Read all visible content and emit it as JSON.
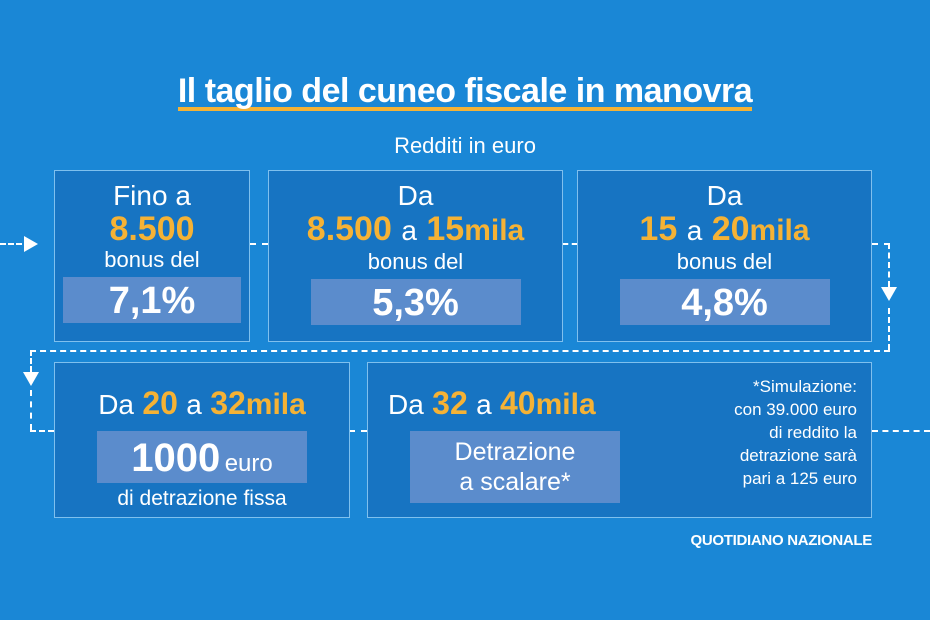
{
  "title": "Il taglio del cuneo fiscale in manovra",
  "subtitle": "Redditi in euro",
  "boxes": [
    {
      "line1": "Fino a",
      "amount": "8.500",
      "bonus_label": "bonus del",
      "percent": "7,1%"
    },
    {
      "line1": "Da",
      "from": "8.500",
      "connector": "a",
      "to": "15",
      "unit": "mila",
      "bonus_label": "bonus del",
      "percent": "5,3%"
    },
    {
      "line1": "Da",
      "from": "15",
      "connector": "a",
      "to": "20",
      "unit": "mila",
      "bonus_label": "bonus del",
      "percent": "4,8%"
    }
  ],
  "row2": {
    "left": {
      "prefix": "Da",
      "from": "20",
      "connector": "a",
      "to": "32",
      "unit": "mila",
      "value": "1000",
      "value_unit": "euro",
      "caption": "di detrazione fissa"
    },
    "right": {
      "prefix": "Da",
      "from": "32",
      "connector": "a",
      "to": "40",
      "unit": "mila",
      "line_a": "Detrazione",
      "line_b": "a scalare*",
      "note": [
        "*Simulazione:",
        "con 39.000 euro",
        "di reddito la",
        "detrazione sarà",
        "pari a 125 euro"
      ]
    }
  },
  "brand": "QUOTIDIANO NAZIONALE",
  "colors": {
    "background": "#1a87d6",
    "box": "#1774c2",
    "highlight": "#f5b235",
    "inner_box": "#5b8ccc"
  }
}
